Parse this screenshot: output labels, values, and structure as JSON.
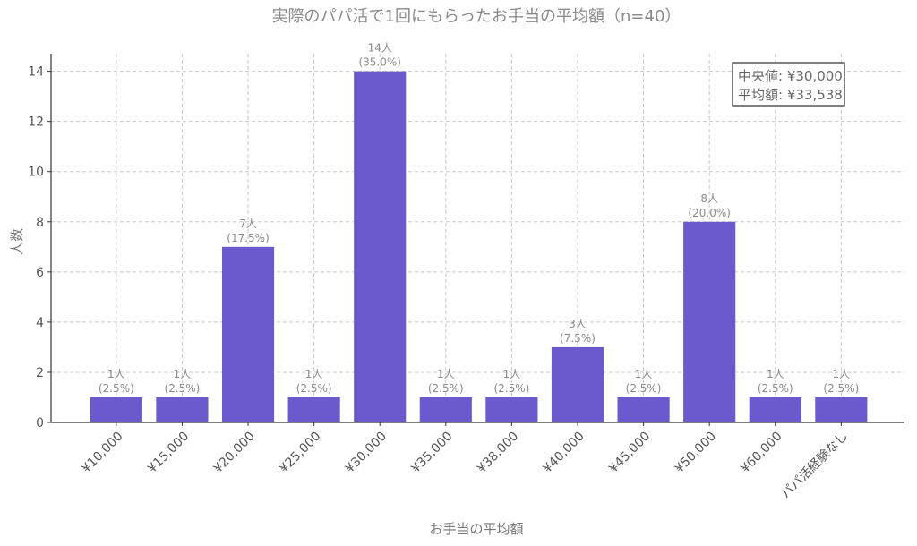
{
  "chart_data": {
    "type": "bar",
    "title": "実際のパパ活で1回にもらったお手当の平均額（n=40）",
    "xlabel": "お手当の平均額",
    "ylabel": "人数",
    "categories": [
      "¥10,000",
      "¥15,000",
      "¥20,000",
      "¥25,000",
      "¥30,000",
      "¥35,000",
      "¥38,000",
      "¥40,000",
      "¥45,000",
      "¥50,000",
      "¥60,000",
      "パパ活経験なし"
    ],
    "values": [
      1,
      1,
      7,
      1,
      14,
      1,
      1,
      3,
      1,
      8,
      1,
      1
    ],
    "data_labels": [
      [
        "1人",
        "(2.5%)"
      ],
      [
        "1人",
        "(2.5%)"
      ],
      [
        "7人",
        "(17.5%)"
      ],
      [
        "1人",
        "(2.5%)"
      ],
      [
        "14人",
        "(35.0%)"
      ],
      [
        "1人",
        "(2.5%)"
      ],
      [
        "1人",
        "(2.5%)"
      ],
      [
        "3人",
        "(7.5%)"
      ],
      [
        "1人",
        "(2.5%)"
      ],
      [
        "8人",
        "(20.0%)"
      ],
      [
        "1人",
        "(2.5%)"
      ],
      [
        "1人",
        "(2.5%)"
      ]
    ],
    "yticks": [
      0,
      2,
      4,
      6,
      8,
      10,
      12,
      14
    ],
    "ylim": [
      0,
      14.7
    ],
    "grid": true,
    "bar_color": "#6a5acd",
    "annotation": {
      "lines": [
        "中央値: ¥30,000",
        "平均額: ¥33,538"
      ],
      "placement": "top-right"
    }
  }
}
